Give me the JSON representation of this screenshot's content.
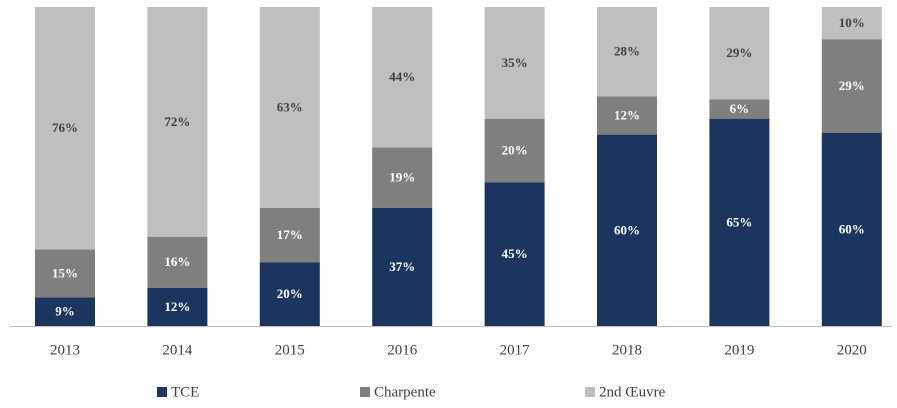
{
  "chart_data": {
    "type": "stacked_bar_100",
    "categories": [
      "2013",
      "2014",
      "2015",
      "2016",
      "2017",
      "2018",
      "2019",
      "2020"
    ],
    "series": [
      {
        "name": "TCE",
        "color": "#1c355e",
        "values": [
          9,
          12,
          20,
          37,
          45,
          60,
          65,
          60
        ],
        "value_labels": [
          "9%",
          "12%",
          "20%",
          "37%",
          "45%",
          "60%",
          "65%",
          "60%"
        ]
      },
      {
        "name": "Charpente",
        "color": "#7f7f7f",
        "values": [
          15,
          16,
          17,
          19,
          20,
          12,
          6,
          29
        ],
        "value_labels": [
          "15%",
          "16%",
          "17%",
          "19%",
          "20%",
          "12%",
          "6%",
          "29%"
        ]
      },
      {
        "name": "2nd Œuvre",
        "color": "#bfbfbf",
        "values": [
          76,
          72,
          63,
          44,
          35,
          28,
          29,
          10
        ],
        "value_labels": [
          "76%",
          "72%",
          "63%",
          "44%",
          "35%",
          "28%",
          "29%",
          "10%"
        ]
      }
    ],
    "legend": "bottom"
  }
}
